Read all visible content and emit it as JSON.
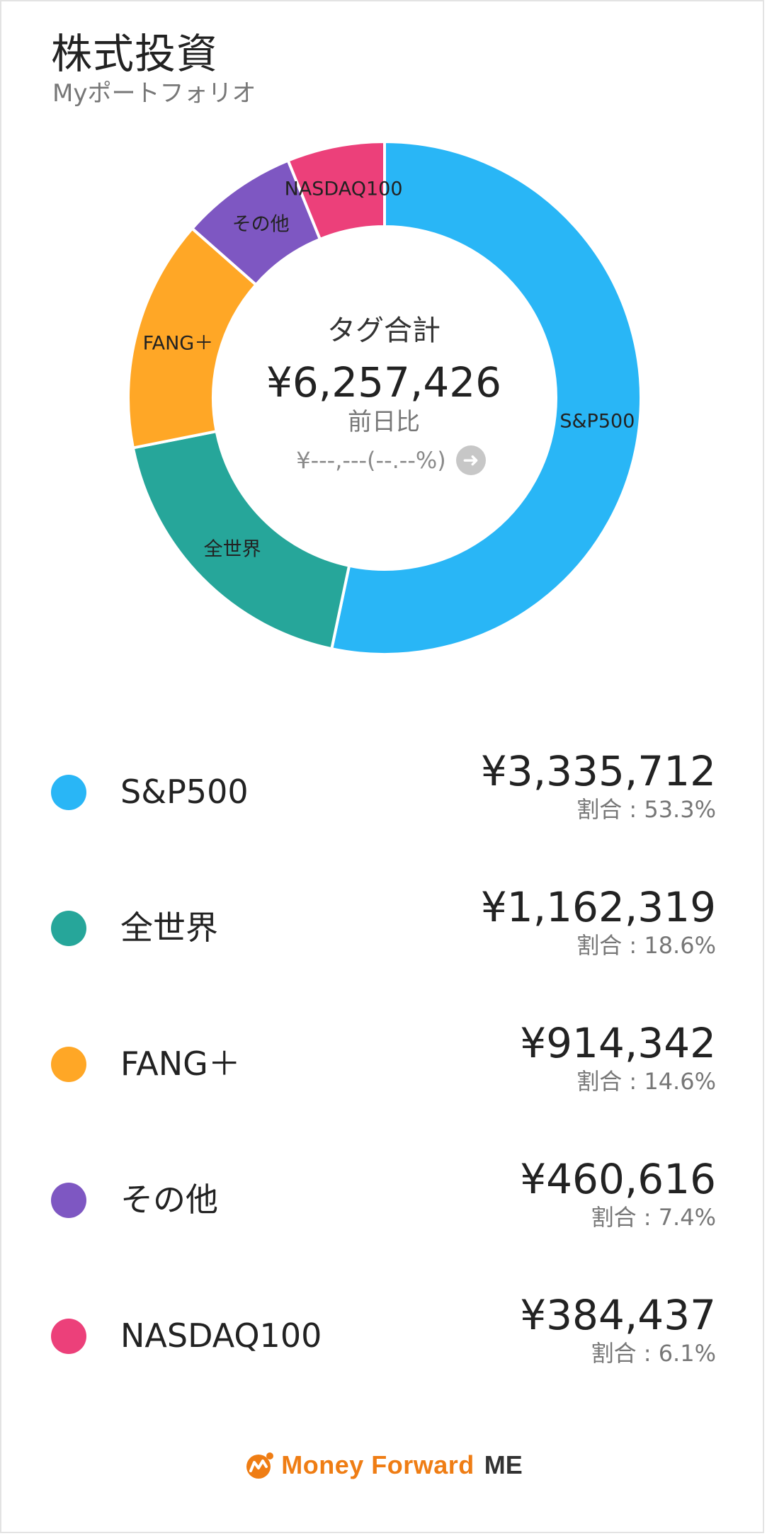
{
  "header": {
    "title": "株式投資",
    "subtitle": "Myポートフォリオ"
  },
  "center": {
    "title": "タグ合計",
    "total": "¥6,257,426",
    "sub_label": "前日比",
    "change": "¥---,---(--.--%)",
    "arrow_icon": "arrow-right-circle-icon"
  },
  "chart_data": {
    "type": "pie",
    "style": "donut",
    "categories": [
      "S&P500",
      "全世界",
      "FANG＋",
      "その他",
      "NASDAQ100"
    ],
    "values": [
      3335712,
      1162319,
      914342,
      460616,
      384437
    ],
    "percent": [
      53.3,
      18.6,
      14.6,
      7.4,
      6.1
    ],
    "colors": [
      "#29b6f6",
      "#26a69a",
      "#ffa726",
      "#7e57c2",
      "#ec407a"
    ]
  },
  "legend": {
    "items": [
      {
        "name": "S&P500",
        "amount": "¥3,335,712",
        "ratio": "割合 : 53.3%",
        "color": "#29b6f6"
      },
      {
        "name": "全世界",
        "amount": "¥1,162,319",
        "ratio": "割合 : 18.6%",
        "color": "#26a69a"
      },
      {
        "name": "FANG＋",
        "amount": "¥914,342",
        "ratio": "割合 : 14.6%",
        "color": "#ffa726"
      },
      {
        "name": "その他",
        "amount": "¥460,616",
        "ratio": "割合 : 7.4%",
        "color": "#7e57c2"
      },
      {
        "name": "NASDAQ100",
        "amount": "¥384,437",
        "ratio": "割合 : 6.1%",
        "color": "#ec407a"
      }
    ]
  },
  "footer": {
    "brand": "Money Forward",
    "brand_suffix": "ME",
    "brand_color": "#ef7d14"
  }
}
